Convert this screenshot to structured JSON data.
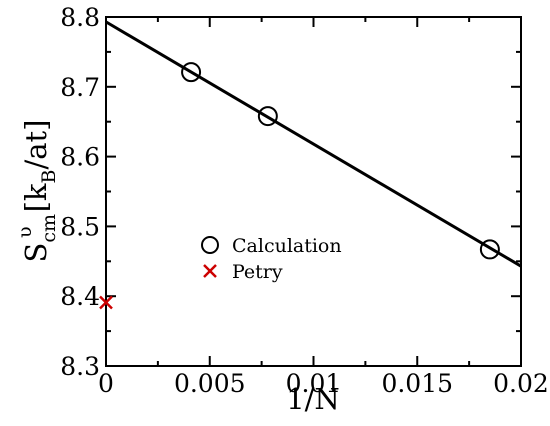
{
  "chart_data": {
    "type": "scatter",
    "title": "",
    "xlabel": "1/N",
    "ylabel": {
      "main": "S",
      "superscript": "υ",
      "subscript": "cm",
      "bracket_open": "[k",
      "bracket_sub": "B",
      "bracket_close": "/at]"
    },
    "xlim": [
      0,
      0.02
    ],
    "ylim": [
      8.3,
      8.8
    ],
    "xticks": [
      {
        "value": 0,
        "label": "0"
      },
      {
        "value": 0.005,
        "label": "0.005"
      },
      {
        "value": 0.01,
        "label": "0.01"
      },
      {
        "value": 0.015,
        "label": "0.015"
      },
      {
        "value": 0.02,
        "label": "0.02"
      }
    ],
    "yticks": [
      {
        "value": 8.3,
        "label": "8.3"
      },
      {
        "value": 8.4,
        "label": "8.4"
      },
      {
        "value": 8.5,
        "label": "8.5"
      },
      {
        "value": 8.6,
        "label": "8.6"
      },
      {
        "value": 8.7,
        "label": "8.7"
      },
      {
        "value": 8.8,
        "label": "8.8"
      }
    ],
    "grid": false,
    "legend_position": "center-left",
    "series": [
      {
        "name": "Calculation",
        "marker": "open-circle",
        "color": "#000000",
        "points": [
          {
            "x": 0.0041,
            "y": 8.721
          },
          {
            "x": 0.0078,
            "y": 8.658
          },
          {
            "x": 0.0185,
            "y": 8.467
          }
        ]
      },
      {
        "name": "Petry",
        "marker": "x",
        "color": "#cc0000",
        "points": [
          {
            "x": 0.0,
            "y": 8.391
          }
        ]
      }
    ],
    "fit_line": {
      "color": "#000000",
      "points": [
        {
          "x": 0.0,
          "y": 8.793
        },
        {
          "x": 0.02,
          "y": 8.443
        }
      ]
    }
  }
}
